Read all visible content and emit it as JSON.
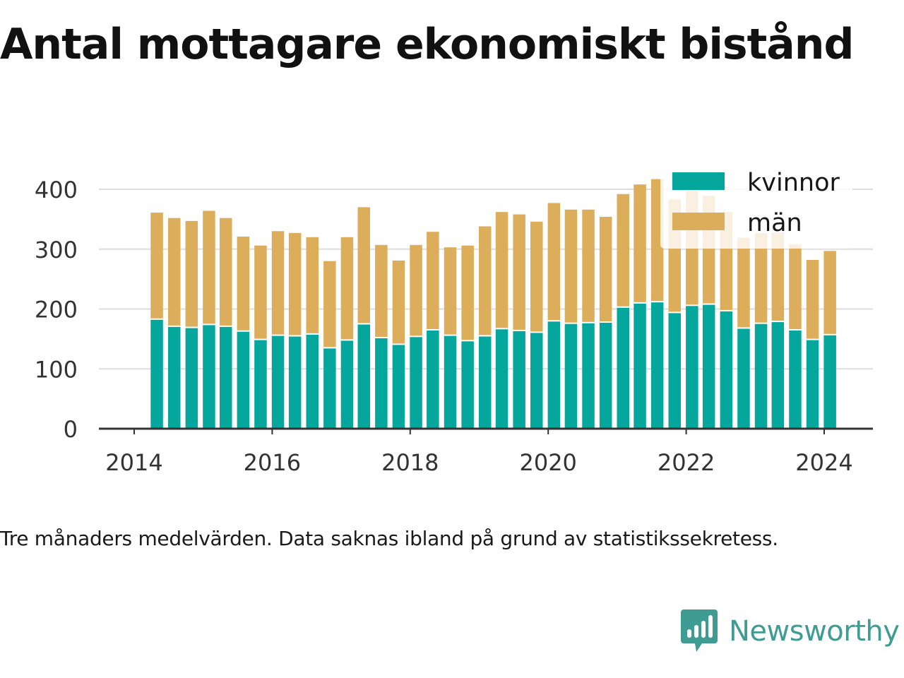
{
  "title": "Antal mottagare ekonomiskt bistånd",
  "note": "Tre månaders medelvärden. Data saknas ibland på grund av statistikssekretess.",
  "brand": {
    "name": "Newsworthy",
    "logo": "newsworthy-logo-icon",
    "color": "#3f9c93"
  },
  "chart_data": {
    "type": "bar",
    "stacked": true,
    "title": "Antal mottagare ekonomiskt bistånd",
    "xlabel": "",
    "ylabel": "",
    "ylim": [
      0,
      400
    ],
    "yticks": [
      0,
      100,
      200,
      300,
      400
    ],
    "xticks": [
      "2014",
      "2016",
      "2018",
      "2020",
      "2022",
      "2024"
    ],
    "grid": true,
    "legend": "top-right",
    "x": [
      "2014-05",
      "2014-08",
      "2014-11",
      "2015-02",
      "2015-05",
      "2015-08",
      "2015-11",
      "2016-02",
      "2016-05",
      "2016-08",
      "2016-11",
      "2017-02",
      "2017-05",
      "2017-08",
      "2017-11",
      "2018-02",
      "2018-05",
      "2018-08",
      "2018-11",
      "2019-02",
      "2019-05",
      "2019-08",
      "2019-11",
      "2020-02",
      "2020-05",
      "2020-08",
      "2020-11",
      "2021-02",
      "2021-05",
      "2021-08",
      "2021-11",
      "2022-02",
      "2022-05",
      "2022-08",
      "2022-11",
      "2023-02",
      "2023-05",
      "2023-08",
      "2023-11",
      "2024-02"
    ],
    "series": [
      {
        "name": "kvinnor",
        "color": "#05a69b",
        "values": [
          182,
          170,
          168,
          173,
          170,
          162,
          148,
          155,
          154,
          157,
          134,
          147,
          174,
          151,
          140,
          153,
          164,
          155,
          146,
          154,
          166,
          163,
          160,
          179,
          175,
          176,
          177,
          202,
          209,
          211,
          193,
          205,
          207,
          196,
          167,
          175,
          178,
          164,
          148,
          156
        ]
      },
      {
        "name": "män",
        "color": "#dcad5a",
        "values": [
          179,
          182,
          179,
          191,
          182,
          159,
          158,
          175,
          173,
          163,
          146,
          173,
          196,
          156,
          141,
          154,
          165,
          148,
          160,
          184,
          196,
          195,
          186,
          198,
          191,
          190,
          177,
          190,
          199,
          206,
          190,
          193,
          182,
          166,
          152,
          152,
          150,
          144,
          134,
          141
        ]
      }
    ]
  }
}
